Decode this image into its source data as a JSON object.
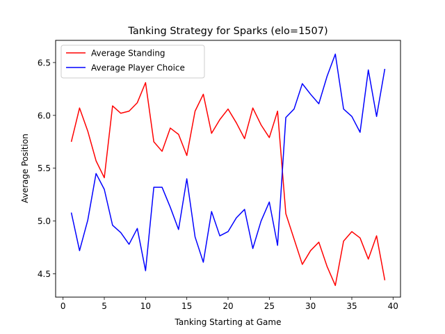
{
  "chart_data": {
    "type": "line",
    "title": "Tanking Strategy for Sparks (elo=1507)",
    "xlabel": "Tanking Starting at Game",
    "ylabel": "Average Position",
    "xlim": [
      -0.9,
      40.9
    ],
    "ylim": [
      4.28,
      6.71
    ],
    "xticks": [
      0,
      5,
      10,
      15,
      20,
      25,
      30,
      35,
      40
    ],
    "yticks": [
      4.5,
      5.0,
      5.5,
      6.0,
      6.5
    ],
    "ytick_labels": [
      "4.5",
      "5.0",
      "5.5",
      "6.0",
      "6.5"
    ],
    "grid": false,
    "legend_position": "upper-left",
    "x": [
      1,
      2,
      3,
      4,
      5,
      6,
      7,
      8,
      9,
      10,
      11,
      12,
      13,
      14,
      15,
      16,
      17,
      18,
      19,
      20,
      21,
      22,
      23,
      24,
      25,
      26,
      27,
      28,
      29,
      30,
      31,
      32,
      33,
      34,
      35,
      36,
      37,
      38,
      39
    ],
    "series": [
      {
        "name": "Average Standing",
        "color": "#ff0000",
        "values": [
          5.75,
          6.07,
          5.85,
          5.57,
          5.41,
          6.09,
          6.02,
          6.04,
          6.12,
          6.31,
          5.75,
          5.66,
          5.88,
          5.82,
          5.62,
          6.04,
          6.2,
          5.83,
          5.96,
          6.06,
          5.93,
          5.78,
          6.07,
          5.91,
          5.79,
          6.04,
          5.07,
          4.83,
          4.59,
          4.72,
          4.8,
          4.57,
          4.39,
          4.81,
          4.9,
          4.84,
          4.64,
          4.86,
          4.44
        ]
      },
      {
        "name": "Average Player Choice",
        "color": "#0000ff",
        "values": [
          5.08,
          4.72,
          5.01,
          5.45,
          5.3,
          4.96,
          4.89,
          4.78,
          4.93,
          4.53,
          5.32,
          5.32,
          5.13,
          4.92,
          5.4,
          4.85,
          4.61,
          5.09,
          4.86,
          4.9,
          5.03,
          5.11,
          4.74,
          5.0,
          5.18,
          4.77,
          5.98,
          6.06,
          6.3,
          6.2,
          6.11,
          6.37,
          6.58,
          6.06,
          5.99,
          5.84,
          6.43,
          5.99,
          6.44
        ]
      }
    ]
  }
}
